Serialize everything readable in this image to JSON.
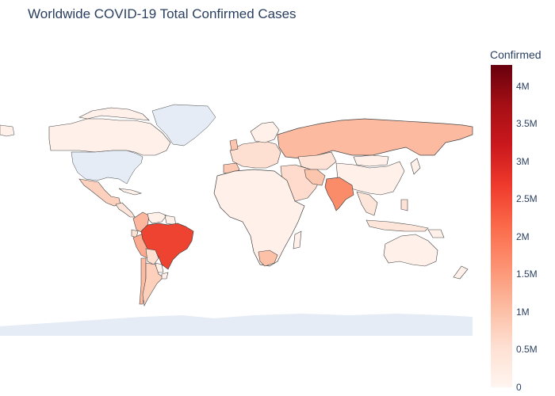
{
  "title": "Worldwide COVID-19 Total Confirmed Cases",
  "colorbar": {
    "title": "Confirmed",
    "ticks": [
      "0",
      "0.5M",
      "1M",
      "1.5M",
      "2M",
      "2.5M",
      "3M",
      "3.5M",
      "4M"
    ],
    "colorscale": [
      "#fff5f0",
      "#fee0d2",
      "#fcbba1",
      "#fc9272",
      "#fb6a4a",
      "#ef3b2c",
      "#cb181d",
      "#a50f15",
      "#67000d"
    ],
    "range": [
      0,
      4280000
    ]
  },
  "colors": {
    "ocean_land_missing": "#e5ecf6",
    "border": "#444444",
    "title": "#2a3f5f"
  },
  "chart_data": {
    "type": "choropleth",
    "title": "Worldwide COVID-19 Total Confirmed Cases",
    "colorbar_title": "Confirmed",
    "scale": "Reds",
    "values": {
      "Brazil": 3400000,
      "India": 1700000,
      "Russia": 820000,
      "South Africa": 500000,
      "Peru": 300000,
      "Mexico": 280000,
      "Colombia": 220000,
      "Chile": 230000,
      "Iran": 230000,
      "Argentina": 110000,
      "Spain": 250000,
      "United Kingdom": 300000
    },
    "missing": [
      "United States",
      "Antarctica",
      "Greenland"
    ]
  }
}
